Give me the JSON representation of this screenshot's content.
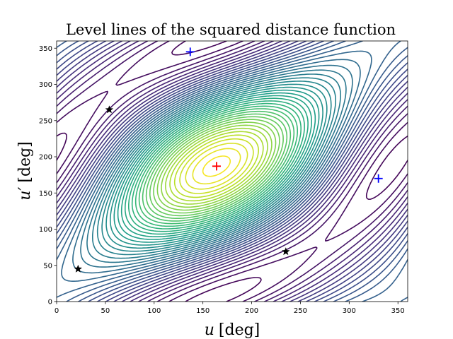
{
  "chart_data": {
    "type": "contour",
    "title": "Level lines of the squared distance function",
    "xlabel_var": "u",
    "xlabel_unit": "[deg]",
    "ylabel_var": "u′",
    "ylabel_unit": "[deg]",
    "xlim": [
      0,
      360
    ],
    "ylim": [
      0,
      360
    ],
    "xticks": [
      0,
      50,
      100,
      150,
      200,
      250,
      300,
      350
    ],
    "yticks": [
      0,
      50,
      100,
      150,
      200,
      250,
      300,
      350
    ],
    "colormap": "viridis",
    "markers": [
      {
        "kind": "plus",
        "color": "#ff0000",
        "x": 164,
        "y": 187
      },
      {
        "kind": "plus",
        "color": "#0000ff",
        "x": 137,
        "y": 345
      },
      {
        "kind": "plus",
        "color": "#0000ff",
        "x": 330,
        "y": 170
      },
      {
        "kind": "star",
        "color": "#000000",
        "x": 54,
        "y": 265
      },
      {
        "kind": "star",
        "color": "#000000",
        "x": 22,
        "y": 45
      },
      {
        "kind": "star",
        "color": "#000000",
        "x": 235,
        "y": 69
      }
    ]
  }
}
